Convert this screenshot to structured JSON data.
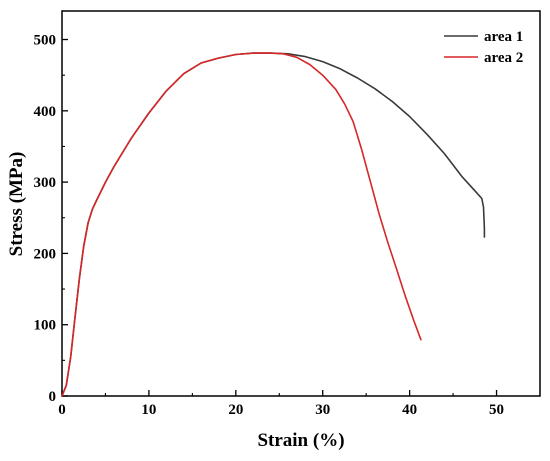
{
  "chart_data": {
    "type": "line",
    "xlabel": "Strain (%)",
    "ylabel": "Stress (MPa)",
    "xlim": [
      0,
      55
    ],
    "ylim": [
      0,
      540
    ],
    "xticks": [
      0,
      10,
      20,
      30,
      40,
      50
    ],
    "yticks": [
      0,
      100,
      200,
      300,
      400,
      500
    ],
    "grid": false,
    "legend": "top-right",
    "series": [
      {
        "name": "area 1",
        "color": "#3a3a3a",
        "x": [
          0,
          0.5,
          1,
          1.5,
          2,
          2.5,
          3,
          3.5,
          4,
          5,
          6,
          8,
          10,
          12,
          14,
          16,
          18,
          20,
          22,
          24,
          26,
          28,
          30,
          32,
          34,
          36,
          38,
          40,
          42,
          44,
          46,
          47.5,
          48.3,
          48.5,
          48.6,
          48.6
        ],
        "y": [
          0,
          15,
          55,
          110,
          165,
          210,
          243,
          262,
          275,
          300,
          322,
          362,
          397,
          428,
          452,
          467,
          474,
          479,
          481,
          481,
          480,
          476,
          469,
          459,
          446,
          431,
          413,
          392,
          367,
          340,
          308,
          288,
          277,
          265,
          235,
          223
        ]
      },
      {
        "name": "area 2",
        "color": "#d62728",
        "x": [
          0,
          0.5,
          1,
          1.5,
          2,
          2.5,
          3,
          3.5,
          4,
          5,
          6,
          8,
          10,
          12,
          14,
          16,
          18,
          20,
          22,
          24,
          25.5,
          27,
          28.5,
          30,
          31.5,
          32.5,
          33.5,
          34.5,
          35.5,
          36.5,
          37.5,
          38.5,
          39.5,
          40.5,
          41.3
        ],
        "y": [
          0,
          15,
          55,
          110,
          165,
          210,
          243,
          262,
          275,
          300,
          322,
          362,
          397,
          428,
          452,
          467,
          474,
          479,
          481,
          481,
          480,
          475,
          465,
          450,
          430,
          410,
          385,
          345,
          300,
          255,
          215,
          178,
          140,
          105,
          79
        ]
      }
    ]
  }
}
